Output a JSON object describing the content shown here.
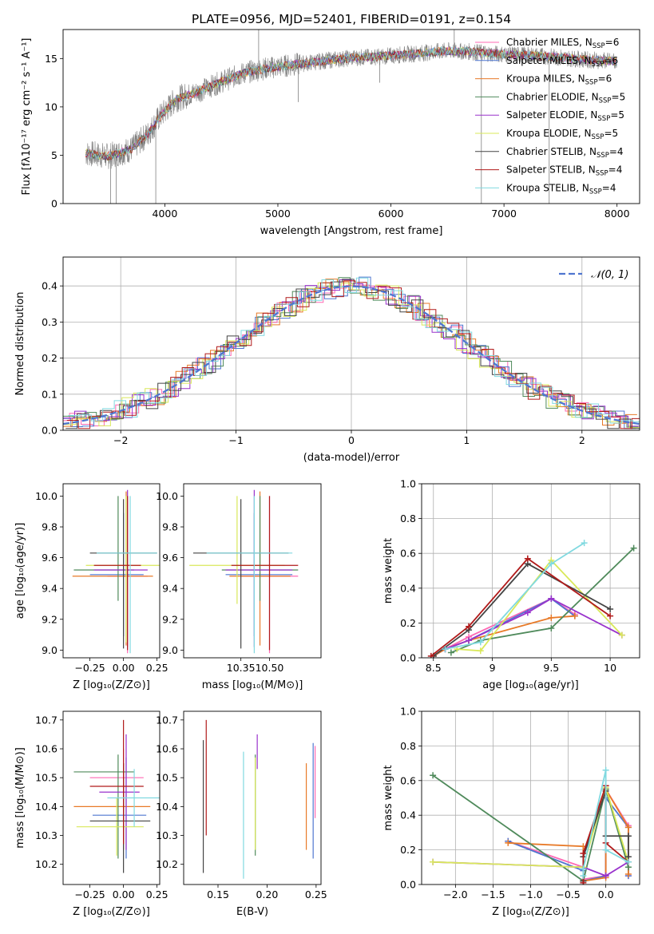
{
  "figure_title": "PLATE=0956, MJD=52401, FIBERID=0191, z=0.154",
  "models": [
    {
      "name": "Chabrier MILES",
      "nssp": "6",
      "color": "#ff69b4"
    },
    {
      "name": "Salpeter MILES",
      "nssp": "6",
      "color": "#4f76d0"
    },
    {
      "name": "Kroupa MILES",
      "nssp": "6",
      "color": "#e87a28"
    },
    {
      "name": "Chabrier ELODIE",
      "nssp": "5",
      "color": "#4f8a5b"
    },
    {
      "name": "Salpeter ELODIE",
      "nssp": "5",
      "color": "#9932cc"
    },
    {
      "name": "Kroupa ELODIE",
      "nssp": "5",
      "color": "#d9e85a"
    },
    {
      "name": "Chabrier STELIB",
      "nssp": "4",
      "color": "#444444"
    },
    {
      "name": "Salpeter STELIB",
      "nssp": "4",
      "color": "#b11a1a"
    },
    {
      "name": "Kroupa STELIB",
      "nssp": "4",
      "color": "#80d9e0"
    }
  ],
  "legend_nssp_label": "N",
  "legend_nssp_sub": "SSP",
  "chart_data": [
    {
      "id": "spectrum",
      "type": "line",
      "xlabel": "wavelength [Angstrom, rest frame]",
      "ylabel": "Flux [fλ10⁻¹⁷ erg cm⁻² s⁻¹ A⁻¹]",
      "xlim": [
        3100,
        8200
      ],
      "ylim": [
        0,
        18
      ],
      "xticks": [
        4000,
        5000,
        6000,
        7000,
        8000
      ],
      "yticks": [
        0,
        5,
        10,
        15
      ],
      "data_x_range": [
        3300,
        8000
      ],
      "data_color": "#808080",
      "continuum": [
        [
          3300,
          5.2
        ],
        [
          3500,
          4.9
        ],
        [
          3700,
          5.6
        ],
        [
          3850,
          7.2
        ],
        [
          3950,
          8.9
        ],
        [
          4100,
          10.8
        ],
        [
          4300,
          11.6
        ],
        [
          4500,
          12.6
        ],
        [
          4700,
          13.5
        ],
        [
          4900,
          14.0
        ],
        [
          5100,
          14.3
        ],
        [
          5300,
          14.6
        ],
        [
          5500,
          14.9
        ],
        [
          5700,
          15.1
        ],
        [
          5900,
          15.2
        ],
        [
          6100,
          15.4
        ],
        [
          6300,
          15.6
        ],
        [
          6500,
          15.8
        ],
        [
          6700,
          15.7
        ],
        [
          6900,
          15.5
        ],
        [
          7100,
          15.4
        ],
        [
          7300,
          15.3
        ],
        [
          7500,
          15.1
        ],
        [
          7700,
          14.9
        ],
        [
          8000,
          14.7
        ]
      ],
      "spikes": [
        [
          3520,
          0
        ],
        [
          3570,
          0
        ],
        [
          3920,
          0
        ],
        [
          4830,
          18
        ],
        [
          5180,
          10.5
        ],
        [
          5900,
          12.5
        ],
        [
          6560,
          19
        ],
        [
          6800,
          0
        ],
        [
          7400,
          0
        ]
      ]
    },
    {
      "id": "residuals",
      "type": "histogram",
      "xlabel": "(data-model)/error",
      "ylabel": "Normed distribution",
      "xlim": [
        -2.5,
        2.5
      ],
      "ylim": [
        0,
        0.48
      ],
      "xticks": [
        -2,
        -1,
        0,
        1,
        2
      ],
      "yticks": [
        0.0,
        0.1,
        0.2,
        0.3,
        0.4
      ],
      "grid": true,
      "bin_edges_step": 0.1,
      "reference": {
        "label": "𝒩(0, 1)",
        "color": "#4f76d0",
        "mean": 0,
        "sigma": 1
      }
    },
    {
      "id": "age_vs_Z",
      "type": "errorbar",
      "xlabel": "Z [log₁₀(Z/Z⊙)]",
      "ylabel": "age  [log₁₀(age/yr)]",
      "xlim": [
        -0.45,
        0.27
      ],
      "ylim": [
        8.95,
        10.08
      ],
      "xticks": [
        -0.25,
        0.0,
        0.25
      ],
      "xticklabels": [
        "−0.25",
        "0.00",
        "0.25"
      ],
      "yticks": [
        9.0,
        9.2,
        9.4,
        9.6,
        9.8,
        10.0
      ],
      "points": [
        {
          "m": 0,
          "x": 0.03,
          "xe": [
            0.15,
            0.15
          ],
          "y": 9.48,
          "ye": [
            0.5,
            0.52
          ]
        },
        {
          "m": 1,
          "x": 0.0,
          "xe": [
            0.25,
            0.15
          ],
          "y": 9.49,
          "ye": [
            0.4,
            0.4
          ]
        },
        {
          "m": 2,
          "x": 0.02,
          "xe": [
            0.4,
            0.2
          ],
          "y": 9.48,
          "ye": [
            0.45,
            0.55
          ]
        },
        {
          "m": 3,
          "x": -0.04,
          "xe": [
            0.33,
            0.12
          ],
          "y": 9.52,
          "ye": [
            0.2,
            0.48
          ]
        },
        {
          "m": 4,
          "x": 0.03,
          "xe": [
            0.25,
            0.15
          ],
          "y": 9.52,
          "ye": [
            0.5,
            0.52
          ]
        },
        {
          "m": 5,
          "x": 0.02,
          "xe": [
            0.3,
            0.3
          ],
          "y": 9.55,
          "ye": [
            0.5,
            0.45
          ]
        },
        {
          "m": 6,
          "x": 0.0,
          "xe": [
            0.25,
            0.25
          ],
          "y": 9.63,
          "ye": [
            0.62,
            0.35
          ]
        },
        {
          "m": 7,
          "x": 0.03,
          "xe": [
            0.25,
            0.1
          ],
          "y": 9.55,
          "ye": [
            0.55,
            0.45
          ]
        },
        {
          "m": 8,
          "x": 0.05,
          "xe": [
            0.25,
            0.2
          ],
          "y": 9.63,
          "ye": [
            0.65,
            0.37
          ]
        }
      ]
    },
    {
      "id": "age_vs_mass",
      "type": "errorbar",
      "xlabel": "mass [log₁₀(M/M⊙)]",
      "ylabel": "",
      "xlim": [
        10.05,
        10.77
      ],
      "ylim": [
        8.95,
        10.08
      ],
      "xticks": [
        10.35,
        10.5
      ],
      "xticklabels": [
        "10.35",
        "10.50"
      ],
      "yticks": [
        9.0,
        9.2,
        9.4,
        9.6,
        9.8,
        10.0
      ],
      "points": [
        {
          "m": 0,
          "x": 10.5,
          "xe": [
            0.15,
            0.15
          ],
          "y": 9.48,
          "ye": [
            0.5,
            0.52
          ]
        },
        {
          "m": 1,
          "x": 10.42,
          "xe": [
            0.15,
            0.2
          ],
          "y": 9.49,
          "ye": [
            0.4,
            0.4
          ]
        },
        {
          "m": 2,
          "x": 10.45,
          "xe": [
            0.16,
            0.16
          ],
          "y": 9.48,
          "ye": [
            0.45,
            0.55
          ]
        },
        {
          "m": 3,
          "x": 10.45,
          "xe": [
            0.2,
            0.2
          ],
          "y": 9.52,
          "ye": [
            0.2,
            0.48
          ]
        },
        {
          "m": 4,
          "x": 10.42,
          "xe": [
            0.15,
            0.2
          ],
          "y": 9.52,
          "ye": [
            0.5,
            0.52
          ]
        },
        {
          "m": 5,
          "x": 10.33,
          "xe": [
            0.25,
            0.25
          ],
          "y": 9.55,
          "ye": [
            0.25,
            0.45
          ]
        },
        {
          "m": 6,
          "x": 10.35,
          "xe": [
            0.25,
            0.25
          ],
          "y": 9.63,
          "ye": [
            0.62,
            0.35
          ]
        },
        {
          "m": 7,
          "x": 10.5,
          "xe": [
            0.2,
            0.15
          ],
          "y": 9.55,
          "ye": [
            0.55,
            0.45
          ]
        },
        {
          "m": 8,
          "x": 10.42,
          "xe": [
            0.25,
            0.2
          ],
          "y": 9.63,
          "ye": [
            0.65,
            0.37
          ]
        }
      ]
    },
    {
      "id": "weight_vs_age",
      "type": "line",
      "xlabel": "age  [log₁₀(age/yr)]",
      "ylabel": "mass weight",
      "xlim": [
        8.4,
        10.25
      ],
      "ylim": [
        0,
        1.0
      ],
      "xticks": [
        8.5,
        9.0,
        9.5,
        10.0
      ],
      "yticks": [
        0.0,
        0.2,
        0.4,
        0.6,
        0.8,
        1.0
      ],
      "grid": true,
      "series": [
        {
          "m": 0,
          "x": [
            8.5,
            8.6,
            8.8,
            9.5,
            9.7
          ],
          "y": [
            0.01,
            0.05,
            0.12,
            0.34,
            0.25
          ]
        },
        {
          "m": 1,
          "x": [
            8.5,
            8.6,
            8.8,
            9.5,
            9.7
          ],
          "y": [
            0.01,
            0.05,
            0.1,
            0.34,
            0.24
          ]
        },
        {
          "m": 2,
          "x": [
            8.5,
            8.6,
            8.8,
            9.5,
            9.7
          ],
          "y": [
            0.01,
            0.05,
            0.1,
            0.23,
            0.24
          ]
        },
        {
          "m": 3,
          "x": [
            8.65,
            8.9,
            9.5,
            10.2
          ],
          "y": [
            0.03,
            0.1,
            0.17,
            0.63
          ]
        },
        {
          "m": 4,
          "x": [
            8.6,
            8.8,
            9.3,
            9.5,
            10.1
          ],
          "y": [
            0.05,
            0.1,
            0.26,
            0.34,
            0.13
          ]
        },
        {
          "m": 5,
          "x": [
            8.7,
            8.9,
            9.5,
            10.1
          ],
          "y": [
            0.05,
            0.04,
            0.56,
            0.13
          ]
        },
        {
          "m": 6,
          "x": [
            8.5,
            8.8,
            9.3,
            10.0
          ],
          "y": [
            0.01,
            0.16,
            0.54,
            0.28
          ]
        },
        {
          "m": 7,
          "x": [
            8.48,
            8.8,
            9.3,
            10.0
          ],
          "y": [
            0.01,
            0.18,
            0.57,
            0.24
          ]
        },
        {
          "m": 8,
          "x": [
            8.6,
            8.9,
            9.5,
            9.78
          ],
          "y": [
            0.05,
            0.09,
            0.54,
            0.66
          ]
        }
      ]
    },
    {
      "id": "mass_vs_Z",
      "type": "errorbar",
      "xlabel": "Z [log₁₀(Z/Z⊙)]",
      "ylabel": "mass [log₁₀(M/M⊙)]",
      "xlim": [
        -0.45,
        0.27
      ],
      "ylim": [
        10.13,
        10.73
      ],
      "xticks": [
        -0.25,
        0.0,
        0.25
      ],
      "xticklabels": [
        "−0.25",
        "0.00",
        "0.25"
      ],
      "yticks": [
        10.2,
        10.3,
        10.4,
        10.5,
        10.6,
        10.7
      ],
      "points": [
        {
          "m": 0,
          "x": 0.0,
          "xe": [
            0.25,
            0.15
          ],
          "y": 10.5,
          "ye": [
            0.12,
            0.1
          ]
        },
        {
          "m": 1,
          "x": 0.02,
          "xe": [
            0.25,
            0.15
          ],
          "y": 10.37,
          "ye": [
            0.15,
            0.2
          ]
        },
        {
          "m": 2,
          "x": 0.0,
          "xe": [
            0.37,
            0.2
          ],
          "y": 10.4,
          "ye": [
            0.15,
            0.15
          ]
        },
        {
          "m": 3,
          "x": -0.04,
          "xe": [
            0.33,
            0.12
          ],
          "y": 10.52,
          "ye": [
            0.3,
            0.06
          ]
        },
        {
          "m": 4,
          "x": 0.02,
          "xe": [
            0.2,
            0.1
          ],
          "y": 10.45,
          "ye": [
            0.2,
            0.2
          ]
        },
        {
          "m": 5,
          "x": -0.05,
          "xe": [
            0.3,
            0.2
          ],
          "y": 10.33,
          "ye": [
            0.1,
            0.1
          ]
        },
        {
          "m": 6,
          "x": 0.0,
          "xe": [
            0.25,
            0.2
          ],
          "y": 10.35,
          "ye": [
            0.18,
            0.2
          ]
        },
        {
          "m": 7,
          "x": 0.0,
          "xe": [
            0.25,
            0.15
          ],
          "y": 10.47,
          "ye": [
            0.2,
            0.23
          ]
        },
        {
          "m": 8,
          "x": 0.08,
          "xe": [
            0.2,
            0.2
          ],
          "y": 10.43,
          "ye": [
            0.1,
            0.1
          ]
        }
      ]
    },
    {
      "id": "mass_vs_ebv",
      "type": "errorbar",
      "xlabel": "E(B-V)",
      "ylabel": "",
      "xlim": [
        0.115,
        0.255
      ],
      "ylim": [
        10.13,
        10.73
      ],
      "xticks": [
        0.15,
        0.2,
        0.25
      ],
      "xticklabels": [
        "0.15",
        "0.20",
        "0.25"
      ],
      "yticks": [
        10.2,
        10.3,
        10.4,
        10.5,
        10.6,
        10.7
      ],
      "points": [
        {
          "m": 0,
          "x": 0.249,
          "xe": [
            0,
            0
          ],
          "y": 10.48,
          "ye": [
            0.12,
            0.13
          ]
        },
        {
          "m": 1,
          "x": 0.247,
          "xe": [
            0,
            0
          ],
          "y": 10.42,
          "ye": [
            0.2,
            0.2
          ]
        },
        {
          "m": 2,
          "x": 0.24,
          "xe": [
            0,
            0
          ],
          "y": 10.4,
          "ye": [
            0.15,
            0.15
          ]
        },
        {
          "m": 3,
          "x": 0.188,
          "xe": [
            0,
            0
          ],
          "y": 10.4,
          "ye": [
            0.17,
            0.18
          ]
        },
        {
          "m": 4,
          "x": 0.19,
          "xe": [
            0,
            0
          ],
          "y": 10.58,
          "ye": [
            0.05,
            0.07
          ]
        },
        {
          "m": 5,
          "x": 0.188,
          "xe": [
            0,
            0
          ],
          "y": 10.4,
          "ye": [
            0.15,
            0.17
          ]
        },
        {
          "m": 6,
          "x": 0.135,
          "xe": [
            0,
            0
          ],
          "y": 10.4,
          "ye": [
            0.23,
            0.23
          ]
        },
        {
          "m": 7,
          "x": 0.138,
          "xe": [
            0,
            0
          ],
          "y": 10.5,
          "ye": [
            0.2,
            0.2
          ]
        },
        {
          "m": 8,
          "x": 0.176,
          "xe": [
            0,
            0
          ],
          "y": 10.3,
          "ye": [
            0.15,
            0.29
          ]
        }
      ]
    },
    {
      "id": "weight_vs_Z",
      "type": "line",
      "xlabel": "Z [log₁₀(Z/Z⊙)]",
      "ylabel": "mass weight",
      "xlim": [
        -2.45,
        0.45
      ],
      "ylim": [
        0,
        1.0
      ],
      "xticks": [
        -2.0,
        -1.5,
        -1.0,
        -0.5,
        0.0
      ],
      "xticklabels": [
        "−2.0",
        "−1.5",
        "−1.0",
        "−0.5",
        "0.0"
      ],
      "yticks": [
        0.0,
        0.2,
        0.4,
        0.6,
        0.8,
        1.0
      ],
      "grid": true,
      "series": [
        {
          "m": 0,
          "x": [
            -1.3,
            -0.3,
            -0.3,
            0.0,
            0.0,
            0.3,
            0.3
          ],
          "y": [
            0.25,
            0.1,
            0.03,
            0.05,
            0.55,
            0.34,
            0.05
          ]
        },
        {
          "m": 1,
          "x": [
            -1.3,
            -0.3,
            -0.3,
            0.0,
            0.0,
            0.3,
            0.3
          ],
          "y": [
            0.25,
            0.08,
            0.02,
            0.05,
            0.5,
            0.33,
            0.05
          ]
        },
        {
          "m": 2,
          "x": [
            -1.3,
            -0.3,
            -0.3,
            0.0,
            0.0,
            0.3,
            0.3
          ],
          "y": [
            0.24,
            0.22,
            0.02,
            0.04,
            0.55,
            0.33,
            0.06
          ]
        },
        {
          "m": 3,
          "x": [
            -2.3,
            -0.3,
            0.0,
            0.3
          ],
          "y": [
            0.63,
            0.02,
            0.55,
            0.1
          ]
        },
        {
          "m": 4,
          "x": [
            -2.3,
            -0.3,
            0.0,
            0.3
          ],
          "y": [
            0.13,
            0.1,
            0.05,
            0.13
          ]
        },
        {
          "m": 5,
          "x": [
            -2.3,
            -0.3,
            0.0,
            0.3
          ],
          "y": [
            0.13,
            0.1,
            0.56,
            0.13
          ]
        },
        {
          "m": 6,
          "x": [
            -0.3,
            -0.3,
            0.0,
            0.0,
            0.3,
            0.3
          ],
          "y": [
            0.02,
            0.16,
            0.54,
            0.28,
            0.28,
            0.16
          ]
        },
        {
          "m": 7,
          "x": [
            -0.3,
            -0.3,
            0.0,
            0.0,
            0.3
          ],
          "y": [
            0.01,
            0.18,
            0.57,
            0.24,
            0.13
          ]
        },
        {
          "m": 8,
          "x": [
            -0.3,
            -0.3,
            0.0,
            0.0,
            0.3
          ],
          "y": [
            0.05,
            0.09,
            0.66,
            0.2,
            0.13
          ]
        }
      ]
    }
  ]
}
